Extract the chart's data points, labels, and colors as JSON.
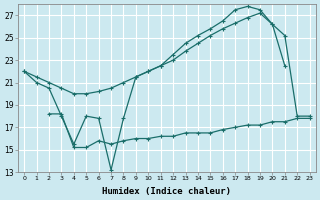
{
  "xlabel": "Humidex (Indice chaleur)",
  "bg_color": "#cce9f0",
  "line_color": "#1a6e6a",
  "grid_color": "#ffffff",
  "xlim": [
    -0.5,
    23.5
  ],
  "ylim": [
    13,
    28
  ],
  "yticks": [
    13,
    15,
    17,
    19,
    21,
    23,
    25,
    27
  ],
  "xticks": [
    0,
    1,
    2,
    3,
    4,
    5,
    6,
    7,
    8,
    9,
    10,
    11,
    12,
    13,
    14,
    15,
    16,
    17,
    18,
    19,
    20,
    21,
    22,
    23
  ],
  "line1_x": [
    0,
    1,
    2,
    3,
    4,
    5,
    6,
    7,
    8,
    9,
    10,
    11,
    12,
    13,
    14,
    15,
    16,
    17,
    18,
    19,
    20,
    21
  ],
  "line1_y": [
    22.0,
    21.0,
    20.5,
    18.0,
    15.5,
    18.0,
    17.8,
    13.2,
    17.8,
    21.5,
    22.0,
    22.5,
    23.5,
    24.5,
    25.2,
    25.8,
    26.5,
    27.5,
    27.8,
    27.5,
    26.2,
    22.5
  ],
  "line2_x": [
    0,
    1,
    2,
    3,
    4,
    5,
    6,
    7,
    8,
    9,
    10,
    11,
    12,
    13,
    14,
    15,
    16,
    17,
    18,
    19,
    20,
    21,
    22,
    23
  ],
  "line2_y": [
    22.0,
    21.5,
    21.0,
    20.5,
    20.0,
    20.0,
    20.2,
    20.5,
    21.0,
    21.5,
    22.0,
    22.5,
    23.0,
    23.8,
    24.5,
    25.2,
    25.8,
    26.3,
    26.8,
    27.2,
    26.2,
    25.2,
    18.0,
    18.0
  ],
  "line3_x": [
    2,
    3,
    4,
    5,
    6,
    7,
    8,
    9,
    10,
    11,
    12,
    13,
    14,
    15,
    16,
    17,
    18,
    19,
    20,
    21,
    22,
    23
  ],
  "line3_y": [
    18.2,
    18.2,
    15.2,
    15.2,
    15.8,
    15.5,
    15.8,
    16.0,
    16.0,
    16.2,
    16.2,
    16.5,
    16.5,
    16.5,
    16.8,
    17.0,
    17.2,
    17.2,
    17.5,
    17.5,
    17.8,
    17.8
  ]
}
